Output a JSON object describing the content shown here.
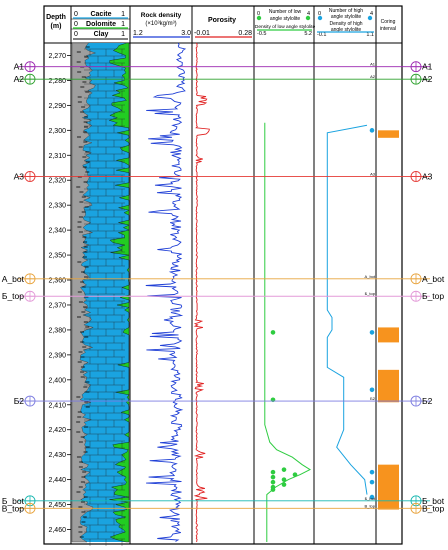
{
  "header": {
    "depth_title": "Depth",
    "depth_unit": "(m)",
    "lith": {
      "calcite": {
        "label": "Cacite",
        "min": "0",
        "max": "1"
      },
      "dolomite": {
        "label": "Dolomite",
        "min": "0",
        "max": "1"
      },
      "clay": {
        "label": "Clay",
        "min": "0",
        "max": "1"
      }
    },
    "density": {
      "title": "Rock density",
      "unit": "(×10³kg/m³)",
      "min": "1.2",
      "max": "3.0"
    },
    "porosity": {
      "title": "Porosity",
      "min": "-0.01",
      "max": "0.28"
    },
    "low_angle": {
      "count_label_1": "Number of low",
      "count_label_2": "angle stylolite",
      "count_min": "0",
      "count_max": "4",
      "density_label": "Density of low angle stylolite",
      "density_min": "-0.5",
      "density_max": "5.2"
    },
    "high_angle": {
      "count_label_1": "Number of high",
      "count_label_2": "angle stylolite",
      "count_min": "0",
      "count_max": "4",
      "density_label_1": "Density of high",
      "density_label_2": "angle stylolite",
      "density_min": "-0.1",
      "density_max": "1.1"
    },
    "coring": {
      "label_1": "Coring",
      "label_2": "interval"
    }
  },
  "depth_ticks": [
    "2,270",
    "2,280",
    "2,290",
    "2,300",
    "2,310",
    "2,320",
    "2,330",
    "2,340",
    "2,350",
    "2,360",
    "2,370",
    "2,380",
    "2,390",
    "2,400",
    "2,410",
    "2,420",
    "2,430",
    "2,440",
    "2,450",
    "2,460"
  ],
  "depth_range": [
    2265,
    2465
  ],
  "markers": [
    {
      "name": "A1",
      "depth": 2274.5,
      "color": "#9c27b0",
      "short": "A1"
    },
    {
      "name": "A2",
      "depth": 2279.5,
      "color": "#2ca02c",
      "short": "A2"
    },
    {
      "name": "A3",
      "depth": 2318.5,
      "color": "#e53935",
      "short": "A3"
    },
    {
      "name": "A_bot",
      "depth": 2359.5,
      "color": "#e8a33c",
      "short": "A_bot"
    },
    {
      "name": "Б_top",
      "depth": 2366.5,
      "color": "#e39ad8",
      "short": "Б_top"
    },
    {
      "name": "Б2",
      "depth": 2408.5,
      "color": "#7b7be0",
      "short": "Б2"
    },
    {
      "name": "Б_bot",
      "depth": 2448.5,
      "color": "#17b7b0",
      "short": "Б_bot"
    },
    {
      "name": "B_top",
      "depth": 2451.5,
      "color": "#e8a33c",
      "short": "B_top"
    }
  ],
  "coring_intervals": [
    [
      2300,
      2303
    ],
    [
      2379,
      2385
    ],
    [
      2396,
      2409
    ],
    [
      2434,
      2452
    ]
  ],
  "low_angle_counts": [
    {
      "depth": 2381,
      "n": 1
    },
    {
      "depth": 2408,
      "n": 1
    },
    {
      "depth": 2436,
      "n": 2
    },
    {
      "depth": 2437,
      "n": 1
    },
    {
      "depth": 2438,
      "n": 3
    },
    {
      "depth": 2439,
      "n": 1
    },
    {
      "depth": 2440,
      "n": 2
    },
    {
      "depth": 2441,
      "n": 1
    },
    {
      "depth": 2442,
      "n": 2
    },
    {
      "depth": 2443,
      "n": 1
    },
    {
      "depth": 2444,
      "n": 1
    }
  ],
  "high_angle_counts": [
    {
      "depth": 2300,
      "n": 4
    },
    {
      "depth": 2381,
      "n": 4
    },
    {
      "depth": 2404,
      "n": 4
    },
    {
      "depth": 2437,
      "n": 4
    },
    {
      "depth": 2441,
      "n": 4
    },
    {
      "depth": 2447,
      "n": 4
    }
  ],
  "colors": {
    "calcite": "#1aa3e0",
    "dolomite": "#22cc22",
    "clay": "#9e9e9e",
    "density": "#1f3fd6",
    "porosity": "#e02020",
    "low_density": "#2ecc40",
    "high_density": "#1aa3e0",
    "coring": "#f7931e"
  }
}
